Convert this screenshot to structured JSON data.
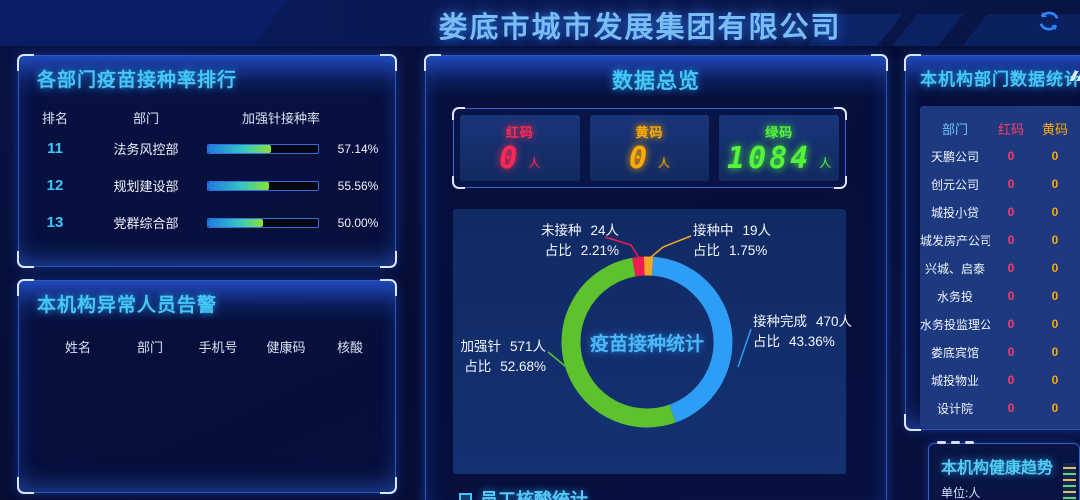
{
  "header": {
    "title": "娄底市城市发展集团有限公司",
    "refresh_icon": "refresh"
  },
  "ranking_panel": {
    "title": "各部门疫苗接种率排行",
    "columns": [
      "排名",
      "部门",
      "加强针接种率"
    ],
    "rows": [
      {
        "rank": "11",
        "dept": "法务风控部",
        "rate_text": "57.14%",
        "rate_value": 57.14
      },
      {
        "rank": "12",
        "dept": "规划建设部",
        "rate_text": "55.56%",
        "rate_value": 55.56
      },
      {
        "rank": "13",
        "dept": "党群综合部",
        "rate_text": "50.00%",
        "rate_value": 50.0
      }
    ]
  },
  "alert_panel": {
    "title": "本机构异常人员告警",
    "columns": [
      "姓名",
      "部门",
      "手机号",
      "健康码",
      "核酸"
    ],
    "rows": []
  },
  "overview_panel": {
    "title": "数据总览",
    "code_stats": [
      {
        "label": "红码",
        "value": "0",
        "unit": "人",
        "color": "#ff2a54"
      },
      {
        "label": "黄码",
        "value": "0",
        "unit": "人",
        "color": "#ffaa00"
      },
      {
        "label": "绿码",
        "value": "1084",
        "unit": "人",
        "color": "#52f53a"
      }
    ],
    "bottom_section_title": "员工核酸统计"
  },
  "dept_stats_panel": {
    "title": "本机构部门数据统计",
    "columns": [
      "部门",
      "红码",
      "黄码"
    ],
    "rows": [
      {
        "dept": "天鹏公司",
        "red": "0",
        "yellow": "0"
      },
      {
        "dept": "创元公司",
        "red": "0",
        "yellow": "0"
      },
      {
        "dept": "城投小贷",
        "red": "0",
        "yellow": "0"
      },
      {
        "dept": "城发房产公司",
        "red": "0",
        "yellow": "0"
      },
      {
        "dept": "兴城、启泰",
        "red": "0",
        "yellow": "0"
      },
      {
        "dept": "水务投",
        "red": "0",
        "yellow": "0"
      },
      {
        "dept": "水务投监理公",
        "red": "0",
        "yellow": "0"
      },
      {
        "dept": "娄底宾馆",
        "red": "0",
        "yellow": "0"
      },
      {
        "dept": "城投物业",
        "red": "0",
        "yellow": "0"
      },
      {
        "dept": "设计院",
        "red": "0",
        "yellow": "0"
      }
    ]
  },
  "health_trend_panel": {
    "title": "本机构健康趋势",
    "unit_label": "单位:人"
  },
  "chart_data": [
    {
      "type": "pie",
      "donut": true,
      "title": "疫苗接种统计",
      "ratio_prefix": "占比",
      "start_angle_deg": -10,
      "slices": [
        {
          "name": "未接种",
          "count_label": "24人",
          "ratio_label": "2.21%",
          "value": 2.21,
          "color": "#ee1d52"
        },
        {
          "name": "接种中",
          "count_label": "19人",
          "ratio_label": "1.75%",
          "value": 1.75,
          "color": "#f5a623"
        },
        {
          "name": "接种完成",
          "count_label": "470人",
          "ratio_label": "43.36%",
          "value": 43.36,
          "color": "#2e9df5"
        },
        {
          "name": "加强针",
          "count_label": "571人",
          "ratio_label": "52.68%",
          "value": 52.68,
          "color": "#5ec22e"
        }
      ]
    },
    {
      "type": "bar",
      "orientation": "horizontal",
      "title": "各部门疫苗接种率排行",
      "categories": [
        "法务风控部",
        "规划建设部",
        "党群综合部"
      ],
      "values": [
        57.14,
        55.56,
        50.0
      ],
      "value_suffix": "%",
      "xlim": [
        0,
        100
      ]
    }
  ]
}
